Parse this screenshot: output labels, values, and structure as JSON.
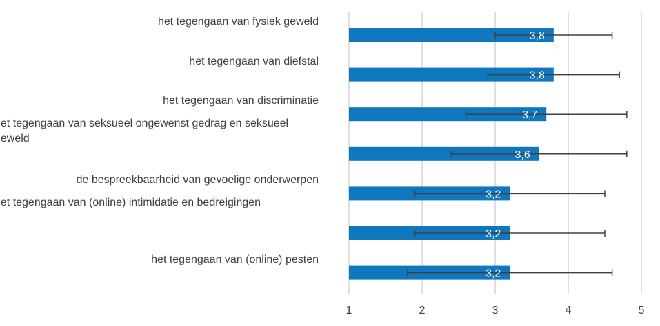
{
  "chart_data": {
    "type": "bar",
    "orientation": "horizontal",
    "title": "",
    "xlabel": "",
    "ylabel": "",
    "xlim": [
      1,
      5
    ],
    "x_ticks": [
      "1",
      "2",
      "3",
      "4",
      "5"
    ],
    "grid": true,
    "bar_color": "#0e77bd",
    "error_bar_color": "#404040",
    "categories": [
      "het tegengaan van fysiek geweld",
      "het tegengaan van diefstal",
      "het tegengaan van discriminatie",
      "het tegengaan van seksueel ongewenst gedrag en seksueel geweld",
      "de bespreekbaarheid van gevoelige onderwerpen",
      "het tegengaan van (online) intimidatie en bedreigingen",
      "het tegengaan van (online) pesten"
    ],
    "values": [
      3.8,
      3.8,
      3.7,
      3.6,
      3.2,
      3.2,
      3.2
    ],
    "value_labels": [
      "3,8",
      "3,8",
      "3,7",
      "3,6",
      "3,2",
      "3,2",
      "3,2"
    ],
    "error_low": [
      3.0,
      2.9,
      2.6,
      2.4,
      1.9,
      1.9,
      1.8
    ],
    "error_high": [
      4.6,
      4.7,
      4.8,
      4.8,
      4.5,
      4.5,
      4.6
    ]
  }
}
